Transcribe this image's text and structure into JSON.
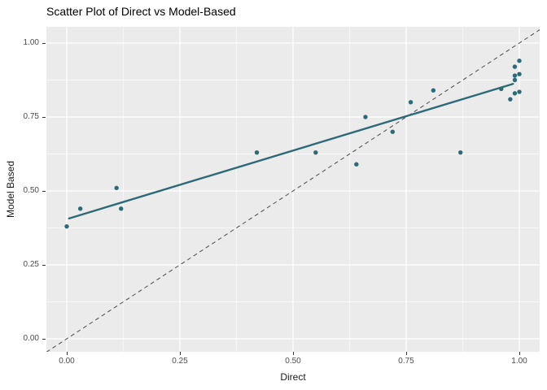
{
  "title": "Scatter Plot of Direct vs Model-Based",
  "chart_data": {
    "type": "scatter",
    "title": "Scatter Plot of Direct vs Model-Based",
    "xlabel": "Direct",
    "ylabel": "Model Based",
    "xlim": [
      -0.045,
      1.048
    ],
    "ylim": [
      -0.045,
      1.054
    ],
    "grid": "major+minor",
    "legend_position": "none",
    "x_ticks": {
      "values": [
        0,
        0.25,
        0.5,
        0.75,
        1.0
      ],
      "labels": [
        "0.00",
        "0.25",
        "0.50",
        "0.75",
        "1.00"
      ]
    },
    "y_ticks": {
      "values": [
        0,
        0.25,
        0.5,
        0.75,
        1.0
      ],
      "labels": [
        "0.00",
        "0.25",
        "0.50",
        "0.75",
        "1.00"
      ]
    },
    "minor_tick_values": [
      0.125,
      0.375,
      0.625,
      0.875
    ],
    "points": [
      [
        0.0,
        0.38
      ],
      [
        0.03,
        0.44
      ],
      [
        0.11,
        0.51
      ],
      [
        0.12,
        0.44
      ],
      [
        0.42,
        0.63
      ],
      [
        0.55,
        0.63
      ],
      [
        0.64,
        0.59
      ],
      [
        0.66,
        0.75
      ],
      [
        0.72,
        0.7
      ],
      [
        0.76,
        0.8
      ],
      [
        0.81,
        0.84
      ],
      [
        0.87,
        0.63
      ],
      [
        0.96,
        0.845
      ],
      [
        0.98,
        0.81
      ],
      [
        0.99,
        0.83
      ],
      [
        1.0,
        0.835
      ],
      [
        0.99,
        0.875
      ],
      [
        0.99,
        0.89
      ],
      [
        1.0,
        0.895
      ],
      [
        0.99,
        0.92
      ],
      [
        1.0,
        0.94
      ]
    ],
    "regression_line": {
      "x1": 0.005,
      "y1": 0.407,
      "x2": 0.986,
      "y2": 0.862
    },
    "identity_line": {
      "x1": -0.045,
      "y1": -0.045,
      "x2": 1.048,
      "y2": 1.048,
      "style": "dashed"
    },
    "colors": {
      "point": "#2d6a75",
      "smooth_line": "#2d6a75",
      "identity_line": "#4a4a4a",
      "panel_bg": "#ebebeb",
      "grid_major": "#ffffff",
      "grid_minor": "#ffffff",
      "tick_label": "#4d4d4d",
      "axis_title": "#1a1a1a",
      "title": "#000000"
    }
  }
}
